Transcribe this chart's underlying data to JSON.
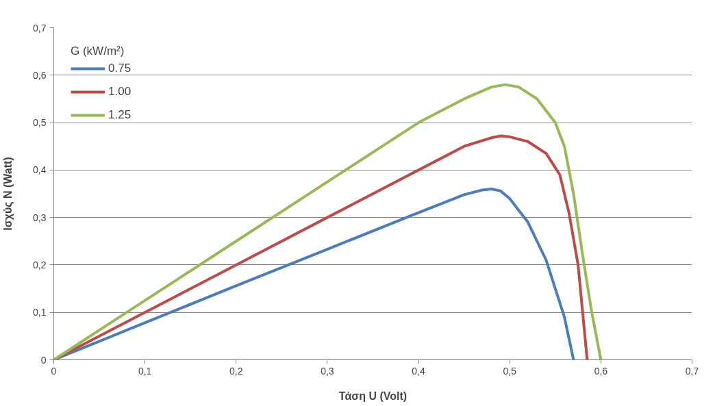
{
  "chart_data": {
    "type": "line",
    "xlabel": "Τάση U (Volt)",
    "ylabel": "Ισχύς N (Watt)",
    "legend_title": "G (kW/m²)",
    "legend": "top left",
    "grid": "y",
    "marker": "none",
    "line_style": "solid",
    "xlim": [
      0,
      0.7
    ],
    "ylim": [
      0,
      0.7
    ],
    "xticks": [
      0,
      {
        "value": 0.1,
        "label": "0,1"
      },
      {
        "value": 0.2,
        "label": "0,2"
      },
      {
        "value": 0.3,
        "label": "0,3"
      },
      {
        "value": 0.4,
        "label": "0,4"
      },
      {
        "value": 0.5,
        "label": "0,5"
      },
      {
        "value": 0.6,
        "label": "0,6"
      },
      {
        "value": 0.7,
        "label": "0,7"
      }
    ],
    "yticks": [
      0,
      {
        "value": 0.1,
        "label": "0,1"
      },
      {
        "value": 0.2,
        "label": "0,2"
      },
      {
        "value": 0.3,
        "label": "0,3"
      },
      {
        "value": 0.4,
        "label": "0,4"
      },
      {
        "value": 0.5,
        "label": "0,5"
      },
      {
        "value": 0.6,
        "label": "0,6"
      },
      {
        "value": 0.7,
        "label": "0,7"
      }
    ],
    "series": [
      {
        "name": "0.75",
        "color": "#4a7ebb",
        "x": [
          0,
          0.1,
          0.2,
          0.3,
          0.4,
          0.45,
          0.47,
          0.48,
          0.49,
          0.5,
          0.52,
          0.54,
          0.56,
          0.57
        ],
        "values": [
          0,
          0.078,
          0.156,
          0.233,
          0.31,
          0.348,
          0.358,
          0.36,
          0.356,
          0.34,
          0.29,
          0.21,
          0.09,
          0
        ]
      },
      {
        "name": "1.00",
        "color": "#be4b48",
        "x": [
          0,
          0.1,
          0.2,
          0.3,
          0.4,
          0.45,
          0.48,
          0.49,
          0.5,
          0.52,
          0.54,
          0.555,
          0.565,
          0.575,
          0.58,
          0.585
        ],
        "values": [
          0,
          0.1,
          0.2,
          0.3,
          0.4,
          0.45,
          0.468,
          0.472,
          0.47,
          0.46,
          0.435,
          0.39,
          0.31,
          0.2,
          0.1,
          0
        ]
      },
      {
        "name": "1.25",
        "color": "#98b954",
        "x": [
          0,
          0.1,
          0.2,
          0.3,
          0.4,
          0.45,
          0.48,
          0.495,
          0.51,
          0.53,
          0.55,
          0.56,
          0.57,
          0.58,
          0.59,
          0.6
        ],
        "values": [
          0,
          0.125,
          0.25,
          0.375,
          0.5,
          0.55,
          0.575,
          0.58,
          0.575,
          0.55,
          0.5,
          0.45,
          0.35,
          0.22,
          0.1,
          0
        ]
      }
    ]
  }
}
